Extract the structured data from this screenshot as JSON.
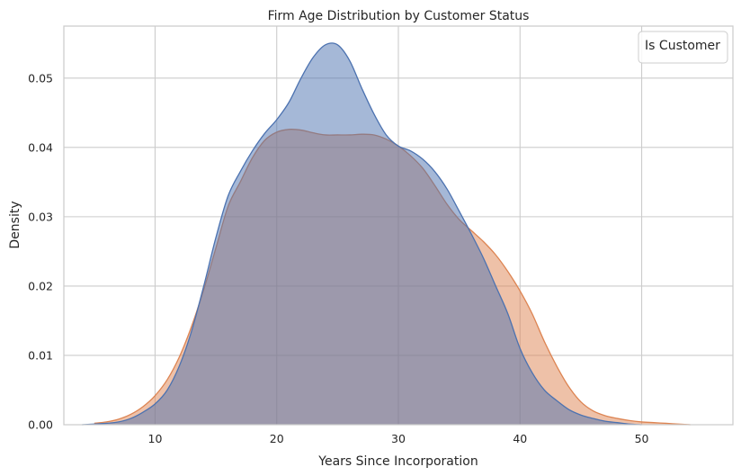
{
  "chart_data": {
    "type": "area",
    "title": "Firm Age Distribution by Customer Status",
    "xlabel": "Years Since Incorporation",
    "ylabel": "Density",
    "xlim": [
      2.5,
      57.5
    ],
    "ylim": [
      0,
      0.0575
    ],
    "xticks": [
      10,
      20,
      30,
      40,
      50
    ],
    "yticks": [
      0.0,
      0.01,
      0.02,
      0.03,
      0.04,
      0.05
    ],
    "ytick_labels": [
      "0.00",
      "0.01",
      "0.02",
      "0.03",
      "0.04",
      "0.05"
    ],
    "grid": true,
    "legend": {
      "title": "Is Customer",
      "placement": "top-right",
      "entries": []
    },
    "series": [
      {
        "color": "#dd8452",
        "fill_opacity": 0.5,
        "x": [
          5,
          6,
          7,
          8,
          9,
          10,
          11,
          12,
          13,
          14,
          15,
          16,
          17,
          18,
          19,
          20,
          21,
          22,
          23,
          24,
          25,
          26,
          27,
          28,
          29,
          30,
          31,
          32,
          33,
          34,
          35,
          36,
          37,
          38,
          39,
          40,
          41,
          42,
          43,
          44,
          45,
          46,
          47,
          48,
          49,
          50,
          51,
          52,
          53,
          54
        ],
        "y": [
          0.0002,
          0.0004,
          0.0008,
          0.0015,
          0.0026,
          0.0042,
          0.0065,
          0.0098,
          0.0142,
          0.0195,
          0.0255,
          0.0315,
          0.035,
          0.0385,
          0.041,
          0.0422,
          0.0426,
          0.0425,
          0.0421,
          0.0418,
          0.0418,
          0.0418,
          0.0419,
          0.0418,
          0.0412,
          0.0402,
          0.0388,
          0.037,
          0.0345,
          0.0318,
          0.0296,
          0.028,
          0.0264,
          0.0245,
          0.0221,
          0.0193,
          0.016,
          0.012,
          0.0085,
          0.0055,
          0.0033,
          0.002,
          0.0013,
          0.0009,
          0.0006,
          0.0004,
          0.0003,
          0.0002,
          0.0001,
          0.0
        ]
      },
      {
        "color": "#4c72b0",
        "fill_opacity": 0.5,
        "x": [
          4,
          5,
          6,
          7,
          8,
          9,
          10,
          11,
          12,
          13,
          14,
          15,
          16,
          17,
          18,
          19,
          20,
          21,
          22,
          23,
          24,
          25,
          26,
          27,
          28,
          29,
          30,
          31,
          32,
          33,
          34,
          35,
          36,
          37,
          38,
          39,
          40,
          41,
          42,
          43,
          44,
          45,
          46,
          47,
          48,
          49,
          50
        ],
        "y": [
          0.0,
          0.0001,
          0.0002,
          0.0004,
          0.0009,
          0.0018,
          0.003,
          0.005,
          0.0085,
          0.0135,
          0.02,
          0.027,
          0.033,
          0.0365,
          0.0395,
          0.042,
          0.044,
          0.0465,
          0.05,
          0.053,
          0.0548,
          0.0548,
          0.0525,
          0.0485,
          0.0448,
          0.0418,
          0.0402,
          0.0395,
          0.0383,
          0.0365,
          0.034,
          0.0308,
          0.0275,
          0.024,
          0.02,
          0.016,
          0.011,
          0.0075,
          0.005,
          0.0035,
          0.0022,
          0.0014,
          0.0009,
          0.0005,
          0.0003,
          0.0001,
          0.0
        ]
      }
    ]
  }
}
